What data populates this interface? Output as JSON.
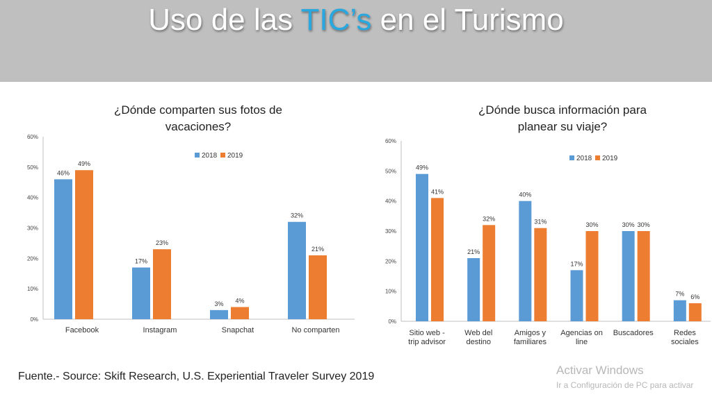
{
  "header": {
    "title_before": "Uso de las ",
    "title_highlight": "TIC’s",
    "title_after": " en el Turismo",
    "highlight_color": "#29a8e0"
  },
  "chart_data": [
    {
      "type": "bar",
      "title_lines": [
        "¿Dónde comparten sus fotos de",
        "vacaciones?"
      ],
      "categories": [
        [
          "Facebook"
        ],
        [
          "Instagram"
        ],
        [
          "Snapchat"
        ],
        [
          "No comparten"
        ]
      ],
      "series": [
        {
          "name": "2018",
          "color": "#5b9bd5",
          "values": [
            46,
            17,
            3,
            32
          ]
        },
        {
          "name": "2019",
          "color": "#ed7d31",
          "values": [
            49,
            23,
            4,
            21
          ]
        }
      ],
      "ylim": [
        0,
        60
      ],
      "yticks": [
        "0%",
        "10%",
        "20%",
        "30%",
        "40%",
        "50%",
        "60%"
      ],
      "value_suffix": "%",
      "grid": false,
      "legend_position": "top-center"
    },
    {
      "type": "bar",
      "title_lines": [
        "¿Dónde busca información para",
        "planear su viaje?"
      ],
      "categories": [
        [
          "Sitio web -",
          "trip advisor"
        ],
        [
          "Web del",
          "destino"
        ],
        [
          "Amigos y",
          "familiares"
        ],
        [
          "Agencias on",
          "line"
        ],
        [
          "Buscadores"
        ],
        [
          "Redes",
          "sociales"
        ]
      ],
      "series": [
        {
          "name": "2018",
          "color": "#5b9bd5",
          "values": [
            49,
            21,
            40,
            17,
            30,
            7
          ]
        },
        {
          "name": "2019",
          "color": "#ed7d31",
          "values": [
            41,
            32,
            31,
            30,
            30,
            6
          ]
        }
      ],
      "ylim": [
        0,
        60
      ],
      "yticks": [
        "0%",
        "10%",
        "20%",
        "30%",
        "40%",
        "50%",
        "60%"
      ],
      "value_suffix": "%",
      "grid": false,
      "legend_position": "top-right"
    }
  ],
  "footer": {
    "source": "Fuente.- Source: Skift Research, U.S. Experiential Traveler Survey 2019"
  },
  "watermark": {
    "line1": "Activar Windows",
    "line2": "Ir a Configuración de PC para activar"
  }
}
